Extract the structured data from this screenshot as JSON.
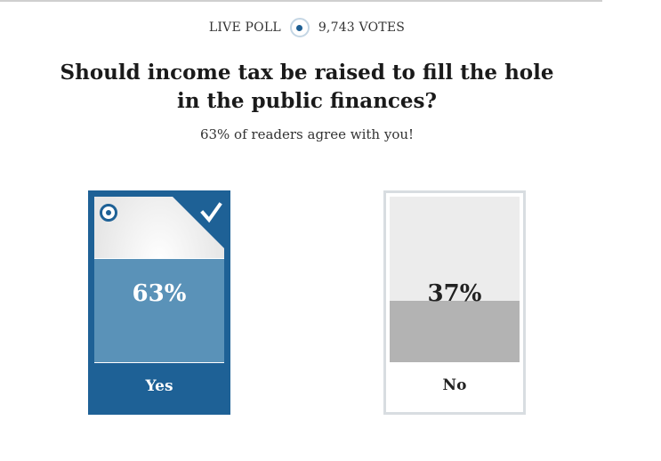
{
  "poll": {
    "label": "LIVE POLL",
    "votes": "9,743 VOTES",
    "question": "Should income tax be raised to fill the hole in the public finances?",
    "agreement": "63% of readers agree with you!"
  },
  "options": [
    {
      "label": "Yes",
      "percent_text": "63%",
      "percent": 63,
      "selected": true
    },
    {
      "label": "No",
      "percent_text": "37%",
      "percent": 37,
      "selected": false
    }
  ],
  "colors": {
    "accent": "#1e6196",
    "accent_light": "#5a92b8",
    "unselected_fill": "#b3b3b3",
    "unselected_border": "#d8dde1"
  },
  "icons": {
    "live": "live-indicator-icon",
    "radio": "radio-selected-icon",
    "check": "checkmark-icon"
  }
}
